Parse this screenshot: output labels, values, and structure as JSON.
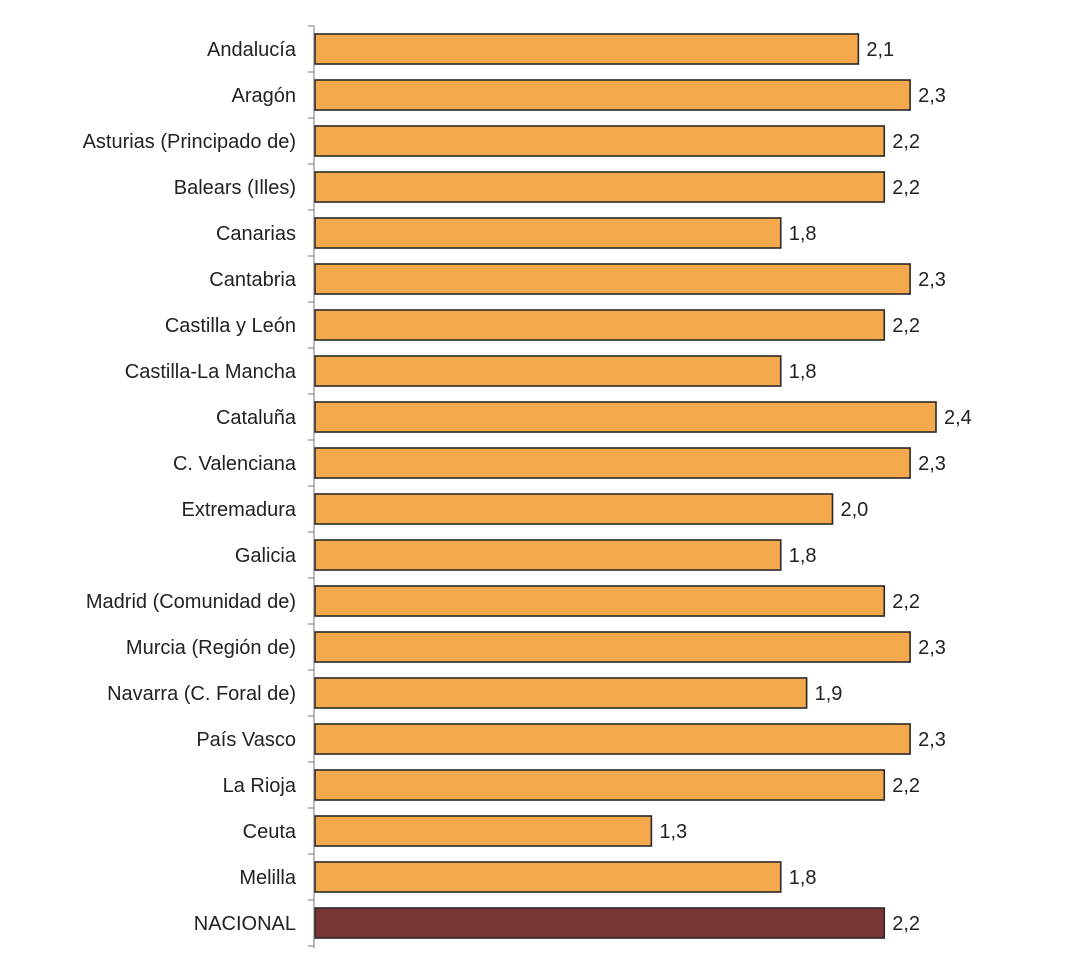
{
  "chart_data": {
    "type": "bar",
    "orientation": "horizontal",
    "categories": [
      "Andalucía",
      "Aragón",
      "Asturias (Principado de)",
      "Balears (Illes)",
      "Canarias",
      "Cantabria",
      "Castilla y León",
      "Castilla-La Mancha",
      "Cataluña",
      "C. Valenciana",
      "Extremadura",
      "Galicia",
      "Madrid (Comunidad de)",
      "Murcia (Región de)",
      "Navarra (C. Foral de)",
      "País Vasco",
      "La Rioja",
      "Ceuta",
      "Melilla",
      "NACIONAL"
    ],
    "values": [
      2.1,
      2.3,
      2.2,
      2.2,
      1.8,
      2.3,
      2.2,
      1.8,
      2.4,
      2.3,
      2.0,
      1.8,
      2.2,
      2.3,
      1.9,
      2.3,
      2.2,
      1.3,
      1.8,
      2.2
    ],
    "value_labels": [
      "2,1",
      "2,3",
      "2,2",
      "2,2",
      "1,8",
      "2,3",
      "2,2",
      "1,8",
      "2,4",
      "2,3",
      "2,0",
      "1,8",
      "2,2",
      "2,3",
      "1,9",
      "2,3",
      "2,2",
      "1,3",
      "1,8",
      "2,2"
    ],
    "highlight_category": "NACIONAL",
    "title": "",
    "xlabel": "",
    "ylabel": "",
    "xlim": [
      0,
      2.4
    ],
    "grid": false,
    "legend": "none",
    "colors": {
      "bar": "#F5A94D",
      "highlight": "#7B3434",
      "bar_stroke": "#2A2A2A",
      "axis": "#777777",
      "text": "#222222"
    }
  }
}
